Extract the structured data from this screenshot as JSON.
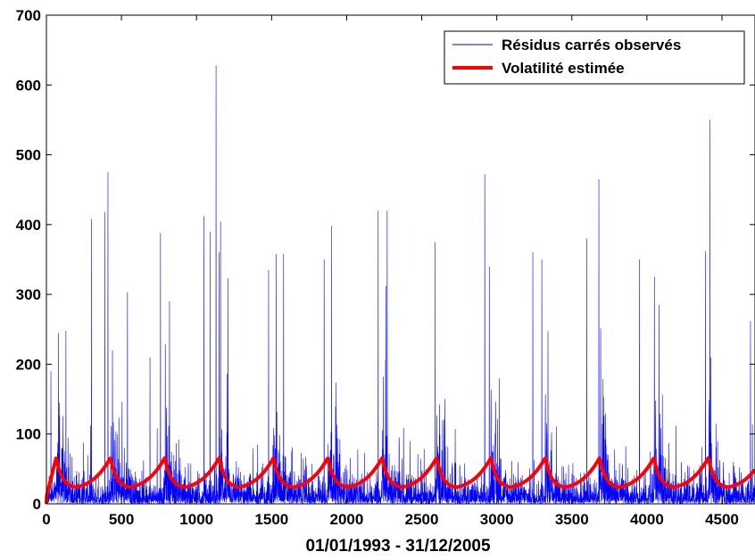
{
  "chart_data": {
    "type": "line",
    "title": "",
    "xlabel": "01/01/1993 - 31/12/2005",
    "ylabel": "",
    "xlim": [
      0,
      4720
    ],
    "ylim": [
      0,
      700
    ],
    "x_ticks": [
      0,
      500,
      1000,
      1500,
      2000,
      2500,
      3000,
      3500,
      4000,
      4500
    ],
    "x_tick_labels": [
      "0",
      "500",
      "1000",
      "1500",
      "2000",
      "2500",
      "3000",
      "3500",
      "4000",
      "4500"
    ],
    "y_ticks": [
      0,
      100,
      200,
      300,
      400,
      500,
      600,
      700
    ],
    "y_tick_labels": [
      "0",
      "100",
      "200",
      "300",
      "400",
      "500",
      "600",
      "700"
    ],
    "grid": false,
    "legend_position": "top-right",
    "series": [
      {
        "name": "Résidus carrés observés",
        "color": "#0000ff",
        "style": "thin-line",
        "n_points": 4720,
        "peaks": [
          {
            "x": 30,
            "y": 190
          },
          {
            "x": 80,
            "y": 245
          },
          {
            "x": 130,
            "y": 248
          },
          {
            "x": 300,
            "y": 408
          },
          {
            "x": 390,
            "y": 418
          },
          {
            "x": 410,
            "y": 475
          },
          {
            "x": 440,
            "y": 220
          },
          {
            "x": 540,
            "y": 303
          },
          {
            "x": 690,
            "y": 210
          },
          {
            "x": 760,
            "y": 388
          },
          {
            "x": 820,
            "y": 290
          },
          {
            "x": 1050,
            "y": 412
          },
          {
            "x": 1090,
            "y": 390
          },
          {
            "x": 1130,
            "y": 628
          },
          {
            "x": 1150,
            "y": 360
          },
          {
            "x": 1210,
            "y": 323
          },
          {
            "x": 1480,
            "y": 335
          },
          {
            "x": 1530,
            "y": 358
          },
          {
            "x": 1580,
            "y": 358
          },
          {
            "x": 1850,
            "y": 350
          },
          {
            "x": 1900,
            "y": 398
          },
          {
            "x": 2210,
            "y": 420
          },
          {
            "x": 2270,
            "y": 420
          },
          {
            "x": 2590,
            "y": 375
          },
          {
            "x": 2920,
            "y": 472
          },
          {
            "x": 2950,
            "y": 340
          },
          {
            "x": 3240,
            "y": 360
          },
          {
            "x": 3300,
            "y": 350
          },
          {
            "x": 3600,
            "y": 380
          },
          {
            "x": 3680,
            "y": 465
          },
          {
            "x": 3950,
            "y": 350
          },
          {
            "x": 4050,
            "y": 325
          },
          {
            "x": 4080,
            "y": 285
          },
          {
            "x": 4390,
            "y": 362
          },
          {
            "x": 4420,
            "y": 550
          },
          {
            "x": 4690,
            "y": 262
          }
        ]
      },
      {
        "name": "Volatilité estimée",
        "color": "#ff0000",
        "style": "thick-line",
        "period": 362,
        "first_peak_x": 65,
        "peak_y": 66,
        "trough_y": 22,
        "start_y": 0
      }
    ]
  }
}
